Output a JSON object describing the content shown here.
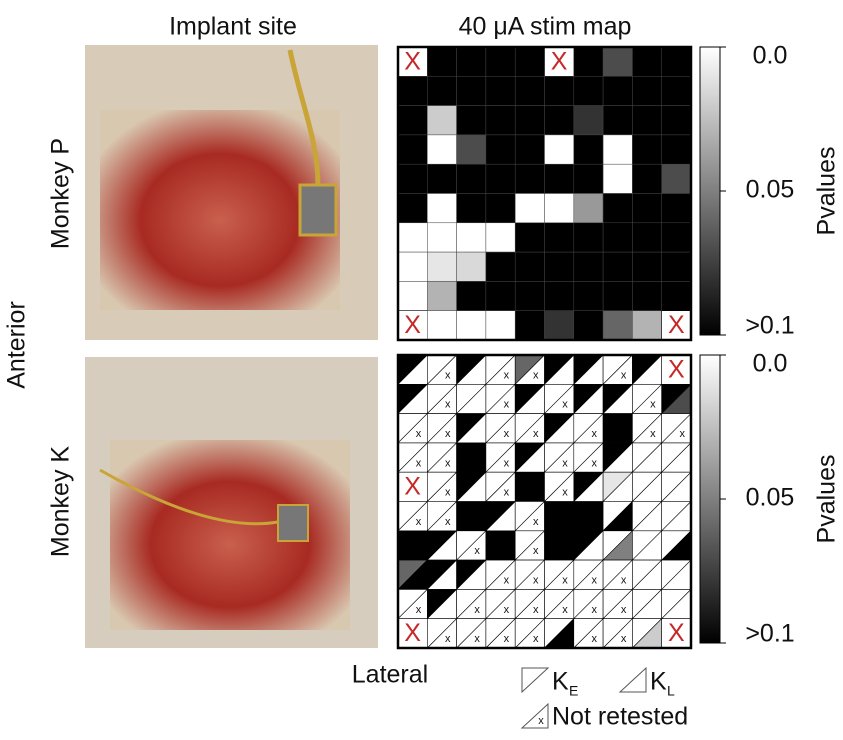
{
  "figure": {
    "left_title": "Implant site",
    "right_title": "40 μA stim map",
    "side_label": "Anterior",
    "bottom_label": "Lateral"
  },
  "chart_data": [
    {
      "type": "heatmap",
      "row_label": "Monkey P",
      "colorbar_label": "Pvalues",
      "clim": [
        0,
        0.1
      ],
      "cticks": [
        {
          "value": 0,
          "label": "0.0"
        },
        0.05,
        {
          "value": 0.1,
          "label": ">0.1"
        }
      ],
      "x_label": "X",
      "cells": [
        [
          null,
          0.1,
          0.1,
          0.1,
          0.1,
          null,
          0.1,
          0.07,
          0.1,
          0.1
        ],
        [
          0.1,
          0.1,
          0.1,
          0.1,
          0.1,
          0.1,
          0.1,
          0.1,
          0.1,
          0.1
        ],
        [
          0.1,
          0.02,
          0.1,
          0.1,
          0.1,
          0.1,
          0.08,
          0.1,
          0.1,
          0.1
        ],
        [
          0.1,
          0,
          0.07,
          0.1,
          0.1,
          0,
          0.1,
          0,
          0.1,
          0.1
        ],
        [
          0.1,
          0.1,
          0.1,
          0.1,
          0.1,
          0.1,
          0.1,
          0,
          0.1,
          0.07
        ],
        [
          0.1,
          0,
          0.1,
          0.1,
          0,
          0,
          0.04,
          0.1,
          0.1,
          0.1
        ],
        [
          0,
          0,
          0,
          0,
          0.1,
          0.1,
          0.1,
          0.1,
          0.1,
          0.1
        ],
        [
          0,
          0.01,
          0.015,
          0.1,
          0.1,
          0.1,
          0.1,
          0.1,
          0.1,
          0.1
        ],
        [
          0,
          0.03,
          0.1,
          0.1,
          0.1,
          0.1,
          0.1,
          0.1,
          0.1,
          0.1
        ],
        [
          null,
          0,
          0,
          0,
          0.1,
          0.08,
          0.1,
          0.06,
          0.03,
          null
        ]
      ]
    },
    {
      "type": "split_heatmap",
      "row_label": "Monkey K",
      "colorbar_label": "Pvalues",
      "clim": [
        0,
        0.1
      ],
      "cticks": [
        {
          "value": 0,
          "label": "0.0"
        },
        0.05,
        {
          "value": 0.1,
          "label": ">0.1"
        }
      ],
      "x_label": "X",
      "not_retested_mark": "x",
      "legend": [
        {
          "label": "K",
          "sub": "E"
        },
        {
          "label": "K",
          "sub": "L"
        },
        {
          "label": "Not retested"
        }
      ],
      "cells": [
        [
          [
            0.1,
            0
          ],
          [
            0,
            null
          ],
          [
            0.1,
            0
          ],
          [
            0,
            null
          ],
          [
            0.06,
            null
          ],
          [
            0.1,
            0
          ],
          [
            0.1,
            0
          ],
          [
            0,
            null
          ],
          [
            0.1,
            0
          ],
          null
        ],
        [
          [
            0.1,
            0
          ],
          [
            0,
            null
          ],
          [
            0,
            0
          ],
          [
            0,
            null
          ],
          [
            0.1,
            0
          ],
          [
            0,
            null
          ],
          [
            0.1,
            0
          ],
          [
            0.1,
            0
          ],
          [
            0,
            null
          ],
          [
            0.1,
            0.07
          ]
        ],
        [
          [
            0,
            null
          ],
          [
            0,
            null
          ],
          [
            0.1,
            0
          ],
          [
            0,
            null
          ],
          [
            0,
            null
          ],
          [
            0.1,
            0
          ],
          [
            0,
            null
          ],
          [
            0.1,
            0.1
          ],
          [
            0,
            null
          ],
          [
            0,
            null
          ]
        ],
        [
          [
            0,
            null
          ],
          [
            0,
            null
          ],
          [
            0.1,
            0.1
          ],
          [
            0,
            null
          ],
          [
            0.1,
            0
          ],
          [
            0,
            null
          ],
          [
            0,
            null
          ],
          [
            0.1,
            0
          ],
          [
            0,
            0
          ],
          [
            0,
            0
          ]
        ],
        [
          null,
          [
            0,
            null
          ],
          [
            0.1,
            0
          ],
          [
            0,
            null
          ],
          [
            0.1,
            0.1
          ],
          [
            0,
            null
          ],
          [
            0.1,
            0
          ],
          [
            0.01,
            0
          ],
          [
            0,
            0
          ],
          [
            0,
            0
          ]
        ],
        [
          [
            0,
            null
          ],
          [
            0,
            null
          ],
          [
            0.1,
            0.1
          ],
          [
            0.1,
            0
          ],
          [
            0,
            null
          ],
          [
            0.1,
            0.1
          ],
          [
            0.1,
            0.1
          ],
          [
            0,
            0.1
          ],
          [
            0,
            0
          ],
          [
            0,
            0
          ]
        ],
        [
          [
            0.1,
            0.1
          ],
          [
            0.1,
            0
          ],
          [
            0,
            null
          ],
          [
            0.1,
            0.1
          ],
          [
            0,
            null
          ],
          [
            0.1,
            0.1
          ],
          [
            0.1,
            0
          ],
          [
            0,
            0.05
          ],
          [
            0,
            0
          ],
          [
            0,
            0.1
          ]
        ],
        [
          [
            0.06,
            0.1
          ],
          [
            0.1,
            0
          ],
          [
            0.1,
            0
          ],
          [
            0,
            null
          ],
          [
            0,
            null
          ],
          [
            0,
            null
          ],
          [
            0,
            null
          ],
          [
            0,
            null
          ],
          [
            0,
            0
          ],
          [
            0,
            0
          ]
        ],
        [
          [
            0,
            null
          ],
          [
            0.1,
            0
          ],
          [
            0,
            null
          ],
          [
            0,
            null
          ],
          [
            0,
            null
          ],
          [
            0,
            null
          ],
          [
            0,
            null
          ],
          [
            0,
            null
          ],
          [
            0,
            0
          ],
          [
            0,
            0
          ]
        ],
        [
          null,
          [
            0,
            null
          ],
          [
            0,
            null
          ],
          [
            0,
            null
          ],
          [
            0,
            null
          ],
          [
            0,
            0.1
          ],
          [
            0,
            null
          ],
          [
            0,
            null
          ],
          [
            0,
            0.02
          ],
          null
        ]
      ]
    }
  ]
}
